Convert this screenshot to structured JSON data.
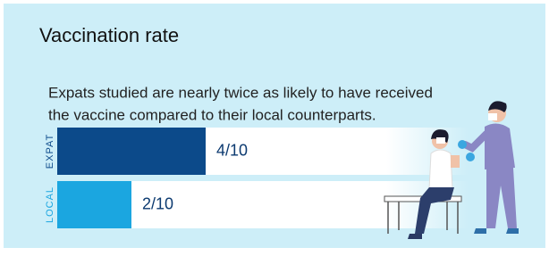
{
  "chart_data": {
    "type": "bar",
    "orientation": "horizontal",
    "title": "Vaccination rate",
    "subtitle": [
      "Expats studied are nearly twice as likely to have received",
      "the vaccine compared to their local counterparts."
    ],
    "categories": [
      "EXPAT",
      "LOCAL"
    ],
    "values": [
      4,
      2
    ],
    "value_labels": [
      "4/10",
      "2/10"
    ],
    "colors": [
      "#0c4a8a",
      "#1ba6e0"
    ],
    "xlim": [
      0,
      10
    ]
  }
}
